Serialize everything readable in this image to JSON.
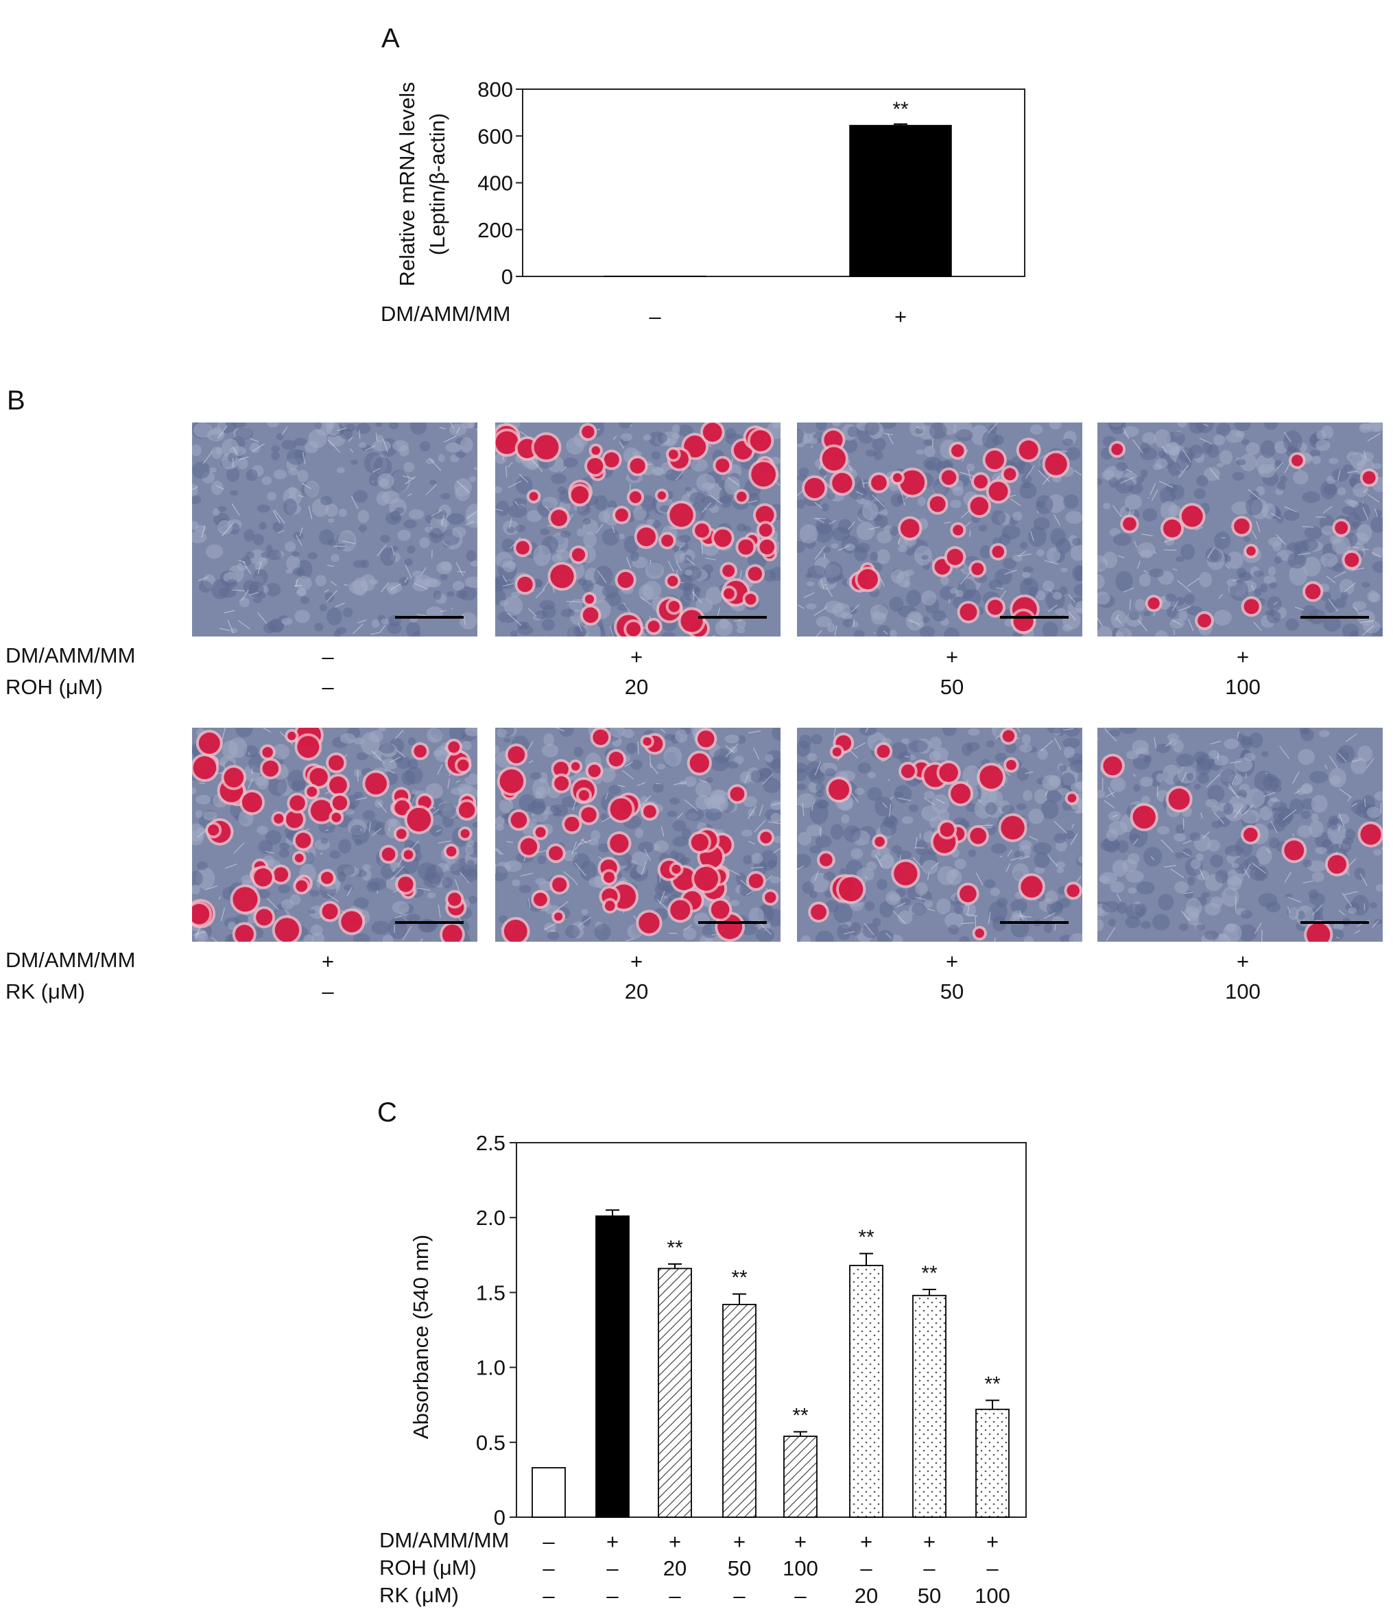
{
  "panels": {
    "a": {
      "letter": "A",
      "row_label": "DM/AMM/MM",
      "chart_data": {
        "type": "bar",
        "ylabel_lines": [
          "Relative mRNA levels",
          "(Leptin/β-actin)"
        ],
        "ylim": [
          0,
          800
        ],
        "yticks": [
          0,
          200,
          400,
          600,
          800
        ],
        "categories": [
          "–",
          "+"
        ],
        "values": [
          1,
          645
        ],
        "errors": [
          0,
          6
        ],
        "significance": [
          "",
          "**"
        ],
        "bar_fills": [
          "white",
          "black"
        ]
      }
    },
    "b": {
      "letter": "B",
      "scale_bar_color": "#000000",
      "rows": [
        {
          "row_labels": [
            "DM/AMM/MM",
            "ROH (μM)"
          ],
          "images": [
            {
              "dm": "–",
              "dose": "–",
              "red_cells": 0
            },
            {
              "dm": "+",
              "dose": "20",
              "red_cells": 60
            },
            {
              "dm": "+",
              "dose": "50",
              "red_cells": 30
            },
            {
              "dm": "+",
              "dose": "100",
              "red_cells": 14
            }
          ]
        },
        {
          "row_labels": [
            "DM/AMM/MM",
            "RK (μM)"
          ],
          "images": [
            {
              "dm": "+",
              "dose": "–",
              "red_cells": 65
            },
            {
              "dm": "+",
              "dose": "20",
              "red_cells": 55
            },
            {
              "dm": "+",
              "dose": "50",
              "red_cells": 28
            },
            {
              "dm": "+",
              "dose": "100",
              "red_cells": 8
            }
          ]
        }
      ]
    },
    "c": {
      "letter": "C",
      "row_labels": [
        "DM/AMM/MM",
        "ROH (μM)",
        "RK (μM)"
      ],
      "chart_data": {
        "type": "bar",
        "ylabel": "Absorbance (540 nm)",
        "ylim": [
          0,
          2.5
        ],
        "yticks": [
          "0",
          "0.5",
          "1.0",
          "1.5",
          "2.0",
          "2.5"
        ],
        "yticks_values": [
          0,
          0.5,
          1.0,
          1.5,
          2.0,
          2.5
        ],
        "values": [
          0.33,
          2.01,
          1.66,
          1.42,
          0.54,
          1.68,
          1.48,
          0.72
        ],
        "errors": [
          0,
          0.04,
          0.03,
          0.07,
          0.03,
          0.08,
          0.04,
          0.06
        ],
        "significance": [
          "",
          "",
          "**",
          "**",
          "**",
          "**",
          "**",
          "**"
        ],
        "bar_fills": [
          "white",
          "black",
          "hatch",
          "hatch",
          "hatch",
          "dots",
          "dots",
          "dots"
        ],
        "conditions": {
          "dm": [
            "–",
            "+",
            "+",
            "+",
            "+",
            "+",
            "+",
            "+"
          ],
          "roh": [
            "–",
            "–",
            "20",
            "50",
            "100",
            "–",
            "–",
            "–"
          ],
          "rk": [
            "–",
            "–",
            "–",
            "–",
            "–",
            "20",
            "50",
            "100"
          ]
        }
      }
    }
  }
}
